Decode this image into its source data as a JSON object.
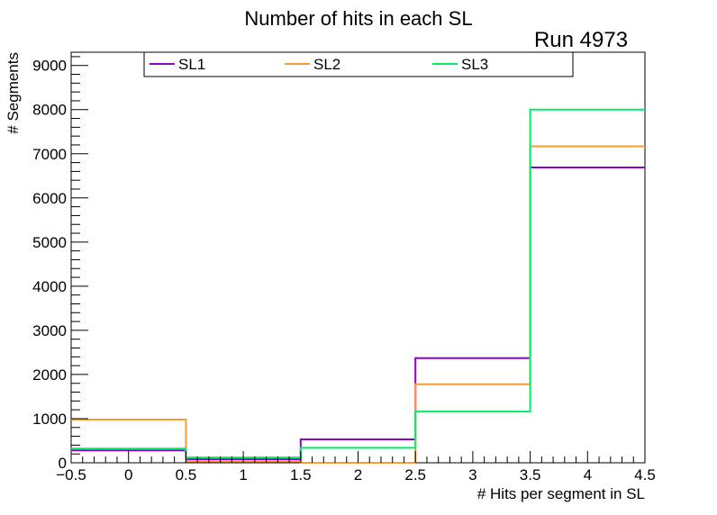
{
  "chart_data": {
    "type": "histogram-step",
    "title": "Number of hits in each SL",
    "run_label": "Run 4973",
    "xlabel": "# Hits per segment in SL",
    "ylabel": "# Segments",
    "xlim": [
      -0.5,
      4.5
    ],
    "ylim": [
      0,
      9300
    ],
    "x_ticks": [
      -0.5,
      0,
      0.5,
      1,
      1.5,
      2,
      2.5,
      3,
      3.5,
      4,
      4.5
    ],
    "x_tick_labels": [
      "−0.5",
      "0",
      "0.5",
      "1",
      "1.5",
      "2",
      "2.5",
      "3",
      "3.5",
      "4",
      "4.5"
    ],
    "y_ticks": [
      0,
      1000,
      2000,
      3000,
      4000,
      5000,
      6000,
      7000,
      8000,
      9000
    ],
    "y_tick_labels": [
      "0",
      "1000",
      "2000",
      "3000",
      "4000",
      "5000",
      "6000",
      "7000",
      "8000",
      "9000"
    ],
    "bin_edges": [
      -0.5,
      0.5,
      1.5,
      2.5,
      3.5,
      4.5
    ],
    "series": [
      {
        "name": "SL1",
        "color": "#8e00d6",
        "values": [
          280,
          80,
          530,
          2370,
          6690
        ]
      },
      {
        "name": "SL2",
        "color": "#ff9933",
        "values": [
          980,
          30,
          0,
          1780,
          7170
        ]
      },
      {
        "name": "SL3",
        "color": "#00ee66",
        "values": [
          320,
          120,
          340,
          1160,
          8000
        ]
      }
    ],
    "legend_position": "top"
  }
}
